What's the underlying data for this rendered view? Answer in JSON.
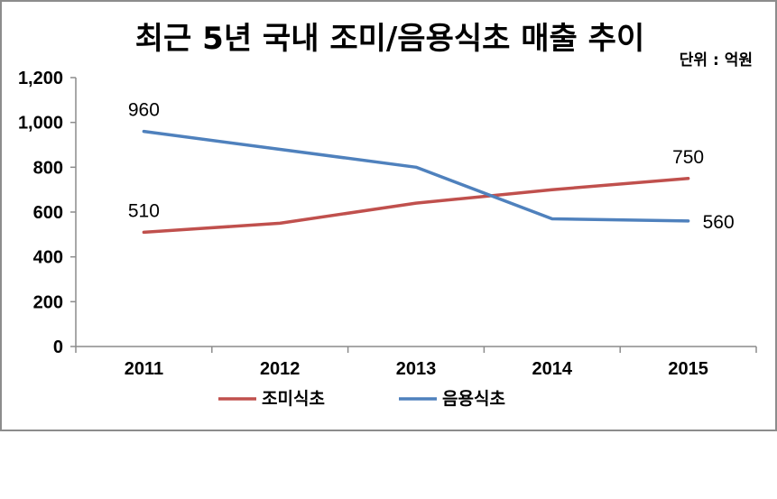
{
  "chart_data": {
    "type": "line",
    "title": "최근 5년 국내 조미/음용식초 매출 추이",
    "unit_label": "단위 : 억원",
    "categories": [
      "2011",
      "2012",
      "2013",
      "2014",
      "2015"
    ],
    "ylim": [
      0,
      1200
    ],
    "yticks": [
      "0",
      "200",
      "400",
      "600",
      "800",
      "1,000",
      "1,200"
    ],
    "ytick_values": [
      0,
      200,
      400,
      600,
      800,
      1000,
      1200
    ],
    "series": [
      {
        "name": "조미식초",
        "color": "#c0504d",
        "values": [
          510,
          550,
          640,
          700,
          750
        ],
        "data_labels": [
          {
            "index": 0,
            "text": "510"
          },
          {
            "index": 4,
            "text": "750"
          }
        ]
      },
      {
        "name": "음용식초",
        "color": "#4f81bd",
        "values": [
          960,
          880,
          800,
          570,
          560
        ],
        "data_labels": [
          {
            "index": 0,
            "text": "960"
          },
          {
            "index": 4,
            "text": "560"
          }
        ]
      }
    ],
    "grid": false,
    "legend": "bottom"
  }
}
